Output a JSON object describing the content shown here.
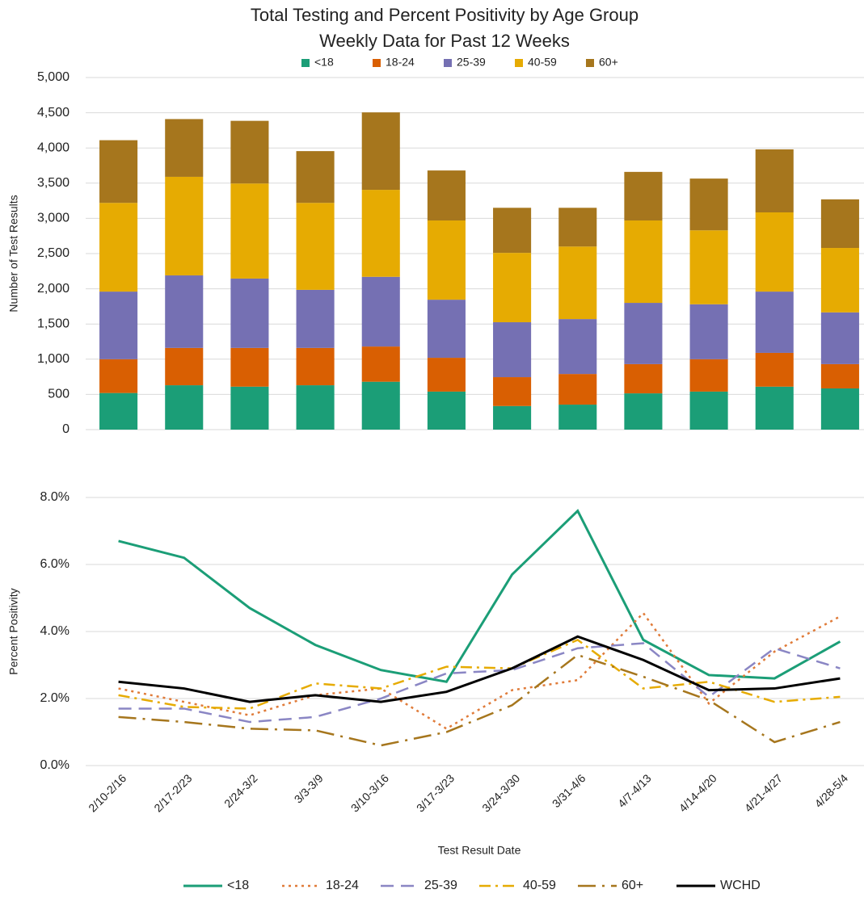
{
  "chart_data": [
    {
      "type": "bar",
      "stacked": true,
      "title": "Total Testing and Percent Positivity by Age Group",
      "subtitle": "Weekly Data for Past 12 Weeks",
      "ylabel": "Number of Test Results",
      "categories": [
        null,
        null,
        null,
        null,
        null,
        null,
        null,
        null,
        null,
        null,
        null,
        null
      ],
      "series": [
        {
          "name": "<18",
          "color": "#1b9e77",
          "values": [
            520,
            630,
            610,
            630,
            680,
            540,
            335,
            355,
            515,
            540,
            610,
            585
          ]
        },
        {
          "name": "18-24",
          "color": "#d95f02",
          "values": [
            480,
            530,
            550,
            530,
            500,
            480,
            410,
            435,
            415,
            460,
            480,
            345
          ]
        },
        {
          "name": "25-39",
          "color": "#7570b3",
          "values": [
            960,
            1030,
            985,
            825,
            990,
            825,
            780,
            780,
            870,
            780,
            870,
            735
          ]
        },
        {
          "name": "40-59",
          "color": "#e6ab02",
          "values": [
            1260,
            1400,
            1350,
            1235,
            1235,
            1125,
            985,
            1030,
            1170,
            1050,
            1125,
            915
          ]
        },
        {
          "name": "60+",
          "color": "#a6761d",
          "values": [
            890,
            820,
            890,
            735,
            1100,
            710,
            640,
            550,
            690,
            735,
            895,
            690
          ]
        }
      ],
      "ylim": [
        0,
        5000
      ],
      "yticks": [
        0,
        500,
        {
          "value": 1000,
          "label": "1,000"
        },
        {
          "value": 1500,
          "label": "1,500"
        },
        {
          "value": 2000,
          "label": "2,000"
        },
        {
          "value": 2500,
          "label": "2,500"
        },
        {
          "value": 3000,
          "label": "3,000"
        },
        {
          "value": 3500,
          "label": "3,500"
        },
        {
          "value": 4000,
          "label": "4,000"
        },
        {
          "value": 4500,
          "label": "4,500"
        },
        {
          "value": 5000,
          "label": "5,000"
        }
      ],
      "grid": true,
      "legend": "top"
    },
    {
      "type": "line",
      "xlabel": "Test Result Date",
      "ylabel": "Percent Positivity",
      "categories": [
        "2/10-2/16",
        "2/17-2/23",
        "2/24-3/2",
        "3/3-3/9",
        "3/10-3/16",
        "3/17-3/23",
        "3/24-3/30",
        "3/31-4/6",
        "4/7-4/13",
        "4/14-4/20",
        "4/21-4/27",
        "4/28-5/4"
      ],
      "series": [
        {
          "name": "<18",
          "color": "#1b9e77",
          "values": [
            6.7,
            6.2,
            4.7,
            3.6,
            2.85,
            2.5,
            5.7,
            7.6,
            3.75,
            2.7,
            2.6,
            3.7
          ]
        },
        {
          "name": "18-24",
          "color": "#e07b39",
          "values": [
            2.3,
            1.9,
            1.5,
            2.1,
            2.3,
            1.1,
            2.25,
            2.55,
            4.55,
            1.85,
            3.4,
            4.45
          ]
        },
        {
          "name": "25-39",
          "color": "#8a86c4",
          "values": [
            1.7,
            1.7,
            1.3,
            1.45,
            2.0,
            2.75,
            2.85,
            3.5,
            3.65,
            2.05,
            3.5,
            2.9
          ]
        },
        {
          "name": "40-59",
          "color": "#e6ab02",
          "values": [
            2.1,
            1.75,
            1.7,
            2.45,
            2.3,
            2.95,
            2.9,
            3.75,
            2.3,
            2.5,
            1.9,
            2.05
          ]
        },
        {
          "name": "60+",
          "color": "#a6761d",
          "values": [
            1.45,
            1.3,
            1.1,
            1.05,
            0.6,
            1.0,
            1.8,
            3.3,
            2.65,
            1.95,
            0.7,
            1.3
          ]
        },
        {
          "name": "WCHD",
          "color": "#000000",
          "values": [
            2.5,
            2.3,
            1.9,
            2.1,
            1.9,
            2.2,
            2.9,
            3.85,
            3.15,
            2.25,
            2.3,
            2.6
          ]
        }
      ],
      "ylim": [
        0,
        8
      ],
      "yticks": [
        {
          "value": 0,
          "label": "0.0%"
        },
        {
          "value": 2,
          "label": "2.0%"
        },
        {
          "value": 4,
          "label": "4.0%"
        },
        {
          "value": 6,
          "label": "6.0%"
        },
        {
          "value": 8,
          "label": "8.0%"
        }
      ],
      "grid": true,
      "legend": "bottom"
    }
  ]
}
